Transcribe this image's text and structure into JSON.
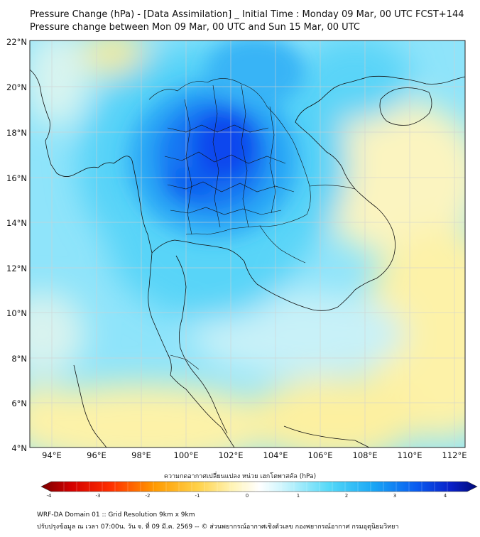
{
  "header": {
    "title_line1": "Pressure Change (hPa) - [Data Assimilation] _ Initial Time : Monday 09 Mar, 00 UTC FCST+144",
    "title_line2": "Pressure change between Mon 09 Mar, 00 UTC and Sun 15 Mar, 00 UTC"
  },
  "map": {
    "lat_labels": [
      "22°N",
      "20°N",
      "18°N",
      "16°N",
      "14°N",
      "12°N",
      "10°N",
      "8°N",
      "6°N",
      "4°N"
    ],
    "lon_labels": [
      "94°E",
      "96°E",
      "98°E",
      "100°E",
      "102°E",
      "104°E",
      "106°E",
      "108°E",
      "110°E",
      "112°E"
    ]
  },
  "colorbar": {
    "label": "ความกดอากาศเปลี่ยนแปลง หน่วย เฮกโตพาสคัล (hPa)",
    "ticks": [
      "-4",
      "-3",
      "-2",
      "-1",
      "0",
      "1",
      "2",
      "3",
      "4"
    ]
  },
  "footer": {
    "line1": "WRF-DA Domain 01 :: Grid Resolution 9km x 9km",
    "line2": "ปรับปรุงข้อมูล ณ เวลา 07:00น. วัน จ. ที่ 09 มี.ค. 2569 -- © ส่วนพยากรณ์อากาศเชิงตัวเลข กองพยากรณ์อากาศ กรมอุตุนิยมวิทยา"
  },
  "colors": {
    "blue_dark": "#0a3df0",
    "blue_mid": "#1e90f5",
    "cyan": "#3fd3f7",
    "light_cyan": "#a6ecfb",
    "yellow": "#fdf2a0",
    "orange": "#f7d870"
  }
}
